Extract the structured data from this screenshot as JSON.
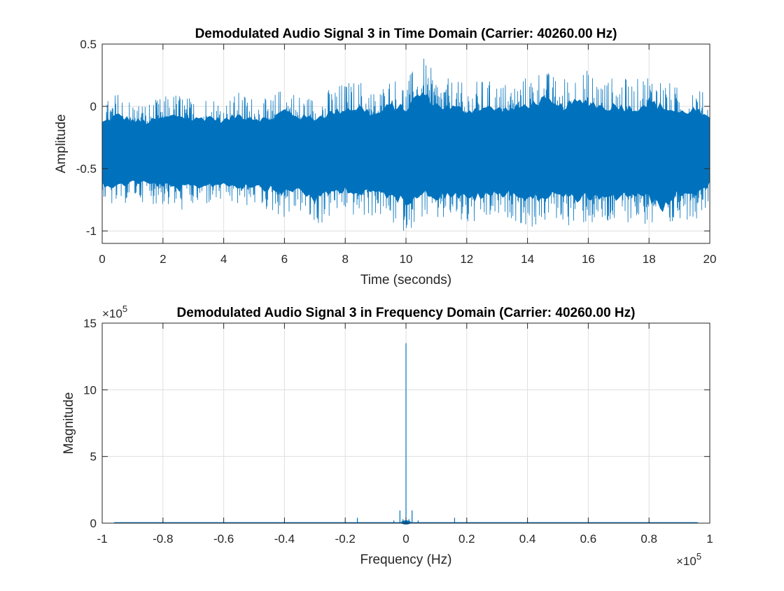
{
  "chart_data": [
    {
      "type": "line",
      "title": "Demodulated Audio Signal 3 in Time Domain (Carrier: 40260.00 Hz)",
      "xlabel": "Time (seconds)",
      "ylabel": "Amplitude",
      "xlim": [
        0,
        20
      ],
      "ylim": [
        -1.1,
        0.5
      ],
      "xticks": [
        0,
        2,
        4,
        6,
        8,
        10,
        12,
        14,
        16,
        18,
        20
      ],
      "xtick_labels": [
        "0",
        "2",
        "4",
        "6",
        "8",
        "10",
        "12",
        "14",
        "16",
        "18",
        "20"
      ],
      "yticks": [
        -1,
        -0.5,
        0,
        0.5
      ],
      "ytick_labels": [
        "-1",
        "-0.5",
        "0",
        "0.5"
      ],
      "grid": true,
      "color": "#0072BD",
      "envelope": {
        "x": [
          0,
          0.5,
          1,
          1.5,
          2,
          2.5,
          3,
          3.5,
          4,
          4.5,
          5,
          5.5,
          6,
          6.5,
          7,
          7.5,
          8,
          8.5,
          9,
          9.5,
          10,
          10.5,
          11,
          11.5,
          12,
          12.5,
          13,
          13.5,
          14,
          14.5,
          15,
          15.5,
          16,
          16.5,
          17,
          17.5,
          18,
          18.5,
          19,
          19.5,
          20
        ],
        "upper": [
          0.02,
          0.12,
          0.05,
          0.03,
          0.08,
          0.12,
          0.06,
          0.1,
          0.05,
          0.12,
          0.08,
          0.06,
          0.18,
          0.1,
          0.08,
          0.15,
          0.2,
          0.22,
          0.12,
          0.25,
          0.2,
          0.42,
          0.25,
          0.22,
          0.18,
          0.22,
          0.2,
          0.2,
          0.25,
          0.32,
          0.22,
          0.28,
          0.3,
          0.22,
          0.25,
          0.2,
          0.3,
          0.22,
          0.15,
          0.2,
          0.05
        ],
        "lower": [
          -0.78,
          -0.82,
          -0.75,
          -0.78,
          -0.8,
          -0.85,
          -0.82,
          -0.8,
          -0.78,
          -0.82,
          -0.8,
          -0.85,
          -0.9,
          -0.85,
          -1.0,
          -0.9,
          -0.85,
          -0.92,
          -0.88,
          -0.95,
          -1.02,
          -0.9,
          -0.95,
          -0.92,
          -0.98,
          -0.95,
          -0.92,
          -0.9,
          -1.0,
          -0.95,
          -0.92,
          -0.98,
          -0.95,
          -1.0,
          -0.95,
          -0.92,
          -0.98,
          -1.1,
          -0.9,
          -0.92,
          -0.78
        ]
      }
    },
    {
      "type": "line",
      "title": "Demodulated Audio Signal 3 in Frequency Domain (Carrier: 40260.00 Hz)",
      "xlabel": "Frequency (Hz)",
      "ylabel": "Magnitude",
      "xlim": [
        -1,
        1
      ],
      "ylim": [
        0,
        15
      ],
      "x_exponent_label": "×10",
      "x_exponent": "5",
      "y_exponent_label": "×10",
      "y_exponent": "5",
      "xticks": [
        -1,
        -0.8,
        -0.6,
        -0.4,
        -0.2,
        0,
        0.2,
        0.4,
        0.6,
        0.8,
        1
      ],
      "xtick_labels": [
        "-1",
        "-0.8",
        "-0.6",
        "-0.4",
        "-0.2",
        "0",
        "0.2",
        "0.4",
        "0.6",
        "0.8",
        "1"
      ],
      "yticks": [
        0,
        5,
        10,
        15
      ],
      "ytick_labels": [
        "0",
        "5",
        "10",
        "15"
      ],
      "grid": true,
      "color": "#0072BD",
      "spectrum_range": [
        -0.96,
        0.96
      ],
      "spikes": [
        {
          "x": -0.96,
          "y": 0.05
        },
        {
          "x": -0.8,
          "y": 0.1
        },
        {
          "x": -0.4,
          "y": 0.1
        },
        {
          "x": -0.16,
          "y": 0.4
        },
        {
          "x": -0.04,
          "y": 0.2
        },
        {
          "x": -0.02,
          "y": 0.95
        },
        {
          "x": -0.01,
          "y": 0.3
        },
        {
          "x": 0,
          "y": 13.5
        },
        {
          "x": 0.01,
          "y": 0.3
        },
        {
          "x": 0.02,
          "y": 0.95
        },
        {
          "x": 0.04,
          "y": 0.2
        },
        {
          "x": 0.16,
          "y": 0.4
        },
        {
          "x": 0.4,
          "y": 0.1
        },
        {
          "x": 0.8,
          "y": 0.1
        },
        {
          "x": 0.96,
          "y": 0.05
        }
      ]
    }
  ]
}
